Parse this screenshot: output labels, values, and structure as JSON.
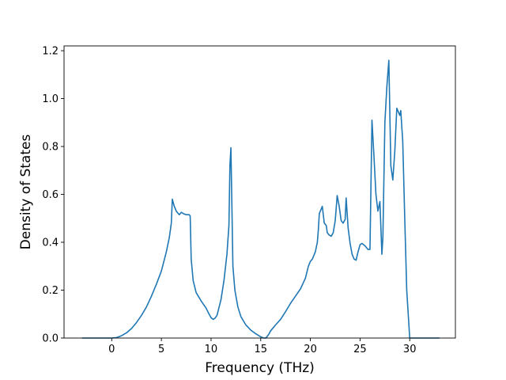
{
  "chart_data": {
    "type": "line",
    "title": "",
    "xlabel": "Frequency (THz)",
    "ylabel": "Density of States",
    "xlim": [
      -4.8,
      34.6
    ],
    "ylim": [
      0.0,
      1.22
    ],
    "x_ticks": [
      0,
      5,
      10,
      15,
      20,
      25,
      30
    ],
    "y_ticks": [
      0.0,
      0.2,
      0.4,
      0.6,
      0.8,
      1.0,
      1.2
    ],
    "x_tick_labels": [
      "0",
      "5",
      "10",
      "15",
      "20",
      "25",
      "30"
    ],
    "y_tick_labels": [
      "0.0",
      "0.2",
      "0.4",
      "0.6",
      "0.8",
      "1.0",
      "1.2"
    ],
    "grid": false,
    "colors": {
      "line": "#1f77b4",
      "axes": "#000000"
    },
    "series": [
      {
        "x": [
          -3.0,
          0.0,
          0.5,
          1.0,
          1.5,
          2.0,
          2.5,
          3.0,
          3.5,
          4.0,
          4.5,
          5.0,
          5.5,
          5.8,
          6.0,
          6.1,
          6.3,
          6.5,
          6.8,
          7.0,
          7.2,
          7.5,
          7.8,
          7.9,
          8.0,
          8.2,
          8.5,
          9.0,
          9.5,
          9.8,
          10.0,
          10.2,
          10.4,
          10.6,
          11.0,
          11.3,
          11.6,
          11.8,
          11.9,
          12.0,
          12.2,
          12.4,
          12.7,
          13.0,
          13.5,
          14.0,
          14.5,
          15.0,
          15.3,
          15.5,
          15.6,
          15.8,
          16.0,
          16.5,
          17.0,
          17.5,
          18.0,
          18.5,
          19.0,
          19.5,
          19.8,
          20.0,
          20.2,
          20.5,
          20.7,
          20.8,
          20.9,
          21.0,
          21.2,
          21.4,
          21.6,
          21.7,
          21.9,
          22.1,
          22.3,
          22.5,
          22.7,
          22.9,
          23.1,
          23.3,
          23.5,
          23.6,
          23.8,
          24.0,
          24.2,
          24.4,
          24.6,
          24.8,
          25.0,
          25.2,
          25.5,
          25.8,
          26.0,
          26.2,
          26.4,
          26.6,
          26.8,
          27.0,
          27.1,
          27.2,
          27.3,
          27.5,
          27.7,
          27.9,
          28.1,
          28.3,
          28.5,
          28.7,
          28.9,
          29.0,
          29.1,
          29.3,
          29.5,
          29.7,
          30.0,
          30.5,
          33.0
        ],
        "y": [
          0.0,
          0.0,
          0.002,
          0.01,
          0.022,
          0.04,
          0.065,
          0.095,
          0.13,
          0.175,
          0.225,
          0.28,
          0.36,
          0.42,
          0.48,
          0.58,
          0.55,
          0.53,
          0.515,
          0.525,
          0.52,
          0.515,
          0.515,
          0.51,
          0.33,
          0.24,
          0.19,
          0.155,
          0.125,
          0.1,
          0.085,
          0.078,
          0.083,
          0.095,
          0.16,
          0.24,
          0.35,
          0.47,
          0.72,
          0.795,
          0.3,
          0.2,
          0.13,
          0.09,
          0.055,
          0.033,
          0.018,
          0.005,
          0.0,
          0.0,
          0.004,
          0.015,
          0.03,
          0.055,
          0.078,
          0.11,
          0.145,
          0.175,
          0.205,
          0.25,
          0.3,
          0.32,
          0.33,
          0.36,
          0.4,
          0.45,
          0.52,
          0.53,
          0.55,
          0.48,
          0.47,
          0.44,
          0.43,
          0.425,
          0.44,
          0.49,
          0.595,
          0.55,
          0.49,
          0.48,
          0.495,
          0.585,
          0.46,
          0.395,
          0.35,
          0.33,
          0.325,
          0.36,
          0.39,
          0.395,
          0.385,
          0.37,
          0.37,
          0.91,
          0.76,
          0.6,
          0.53,
          0.57,
          0.46,
          0.35,
          0.42,
          0.9,
          1.05,
          1.16,
          0.72,
          0.66,
          0.78,
          0.96,
          0.94,
          0.93,
          0.95,
          0.82,
          0.5,
          0.2,
          0.0,
          0.0,
          0.0
        ]
      }
    ]
  }
}
